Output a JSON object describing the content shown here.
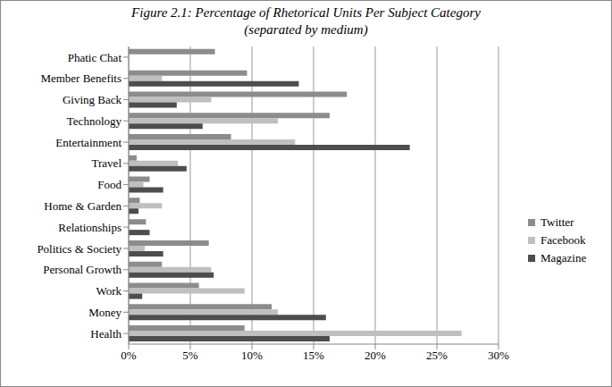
{
  "chart_data": {
    "type": "bar",
    "orientation": "horizontal",
    "title": "Figure 2.1: Percentage of Rhetorical Units Per Subject Category",
    "subtitle": "(separated by medium)",
    "categories": [
      "Phatic Chat",
      "Member Benefits",
      "Giving Back",
      "Technology",
      "Entertainment",
      "Travel",
      "Food",
      "Home & Garden",
      "Relationships",
      "Politics & Society",
      "Personal Growth",
      "Work",
      "Money",
      "Health"
    ],
    "series": [
      {
        "name": "Twitter",
        "color": "#8c8c8c",
        "values": [
          7.0,
          9.6,
          17.7,
          16.3,
          8.3,
          0.65,
          1.7,
          0.9,
          1.4,
          6.5,
          2.7,
          5.7,
          11.6,
          9.4
        ]
      },
      {
        "name": "Facebook",
        "color": "#bfbfbf",
        "values": [
          0,
          2.7,
          6.7,
          12.1,
          13.5,
          4.0,
          1.2,
          2.7,
          0,
          1.3,
          6.7,
          9.4,
          12.1,
          27.0
        ]
      },
      {
        "name": "Magazine",
        "color": "#4d4d4d",
        "values": [
          0,
          13.8,
          3.9,
          6.0,
          22.8,
          4.7,
          2.8,
          0.8,
          1.7,
          2.8,
          6.9,
          1.1,
          16.0,
          16.3
        ]
      }
    ],
    "xlim": [
      0,
      30
    ],
    "xticks": [
      {
        "value": 0,
        "label": "0%"
      },
      {
        "value": 5,
        "label": "5%"
      },
      {
        "value": 10,
        "label": "10%"
      },
      {
        "value": 15,
        "label": "15%"
      },
      {
        "value": 20,
        "label": "20%"
      },
      {
        "value": 25,
        "label": "25%"
      },
      {
        "value": 30,
        "label": "30%"
      }
    ],
    "grid": true,
    "legend": "right"
  }
}
